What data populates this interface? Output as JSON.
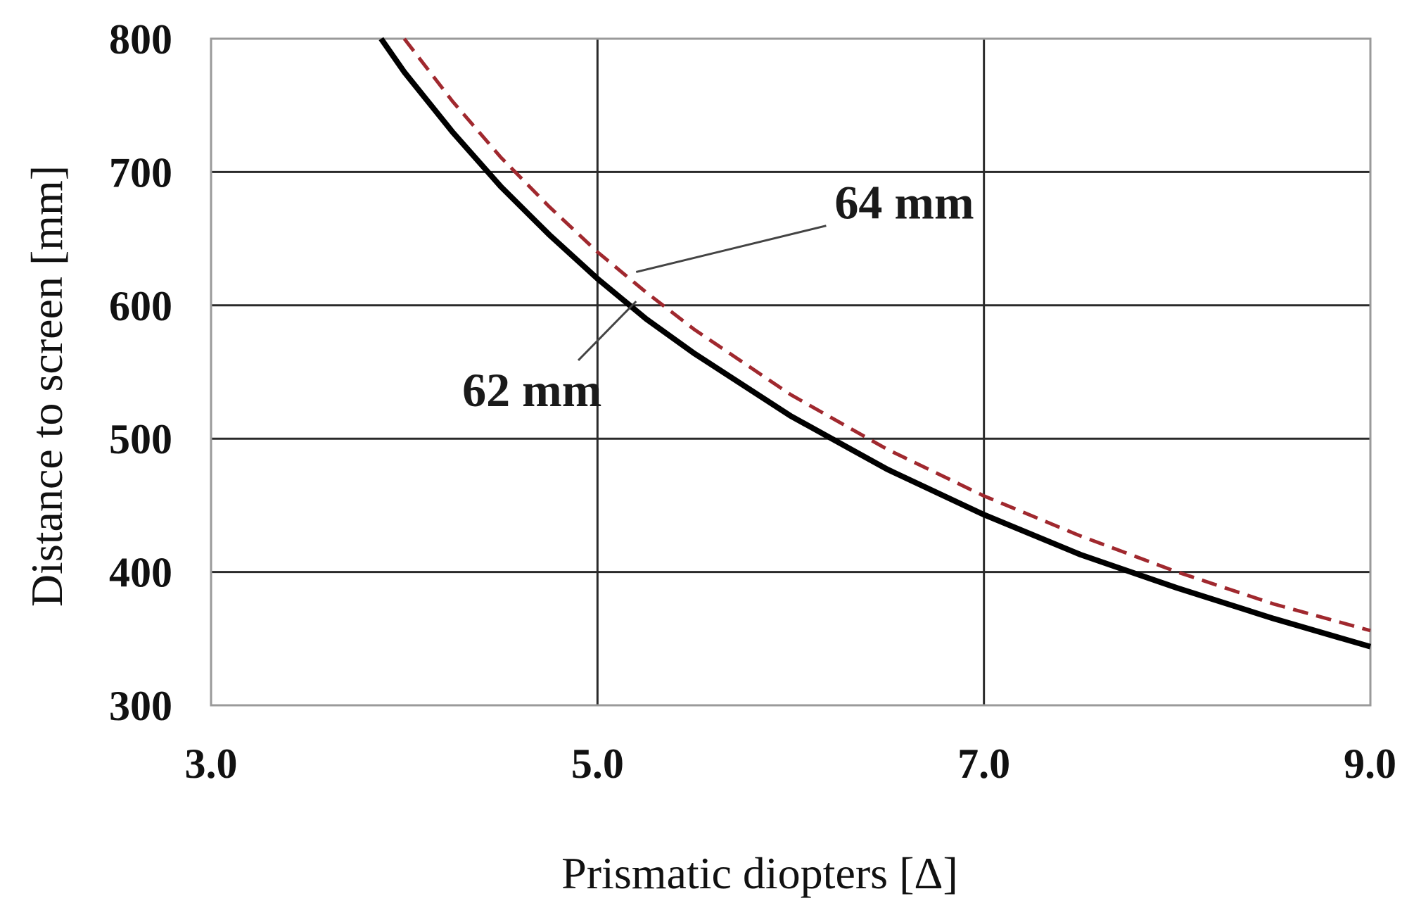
{
  "chart_data": {
    "type": "line",
    "title": "",
    "xlabel": "Prismatic diopters  [Δ]",
    "ylabel": "Distance to screen [mm]",
    "xlim": [
      3.0,
      9.0
    ],
    "ylim": [
      300,
      800
    ],
    "x_ticks": [
      {
        "value": 3.0,
        "label": "3.0"
      },
      {
        "value": 5.0,
        "label": "5.0"
      },
      {
        "value": 7.0,
        "label": "7.0"
      },
      {
        "value": 9.0,
        "label": "9.0"
      }
    ],
    "y_ticks": [
      {
        "value": 300,
        "label": "300"
      },
      {
        "value": 400,
        "label": "400"
      },
      {
        "value": 500,
        "label": "500"
      },
      {
        "value": 600,
        "label": "600"
      },
      {
        "value": 700,
        "label": "700"
      },
      {
        "value": 800,
        "label": "800"
      }
    ],
    "grid": true,
    "legend": "none",
    "series": [
      {
        "name": "62 mm",
        "color": "#000000",
        "style": "solid",
        "x": [
          3.88,
          4.0,
          4.25,
          4.5,
          4.75,
          5.0,
          5.25,
          5.5,
          6.0,
          6.5,
          7.0,
          7.5,
          8.0,
          8.5,
          9.0
        ],
        "y": [
          800,
          775,
          730,
          689,
          653,
          620,
          590,
          564,
          517,
          477,
          443,
          413,
          388,
          365,
          344
        ]
      },
      {
        "name": "64 mm",
        "color": "#a0282e",
        "style": "dashed",
        "x": [
          4.0,
          4.25,
          4.5,
          4.75,
          5.0,
          5.25,
          5.5,
          6.0,
          6.5,
          7.0,
          7.5,
          8.0,
          8.5,
          9.0
        ],
        "y": [
          800,
          753,
          711,
          674,
          640,
          610,
          582,
          533,
          492,
          457,
          427,
          400,
          376,
          356
        ]
      }
    ],
    "annotations": [
      {
        "text": "64 mm",
        "target_series": "64 mm",
        "target": [
          5.2,
          625
        ],
        "label_at": [
          6.3,
          665
        ]
      },
      {
        "text": "62 mm",
        "target_series": "62 mm",
        "target": [
          5.2,
          603
        ],
        "label_at": [
          4.3,
          535
        ]
      }
    ]
  }
}
